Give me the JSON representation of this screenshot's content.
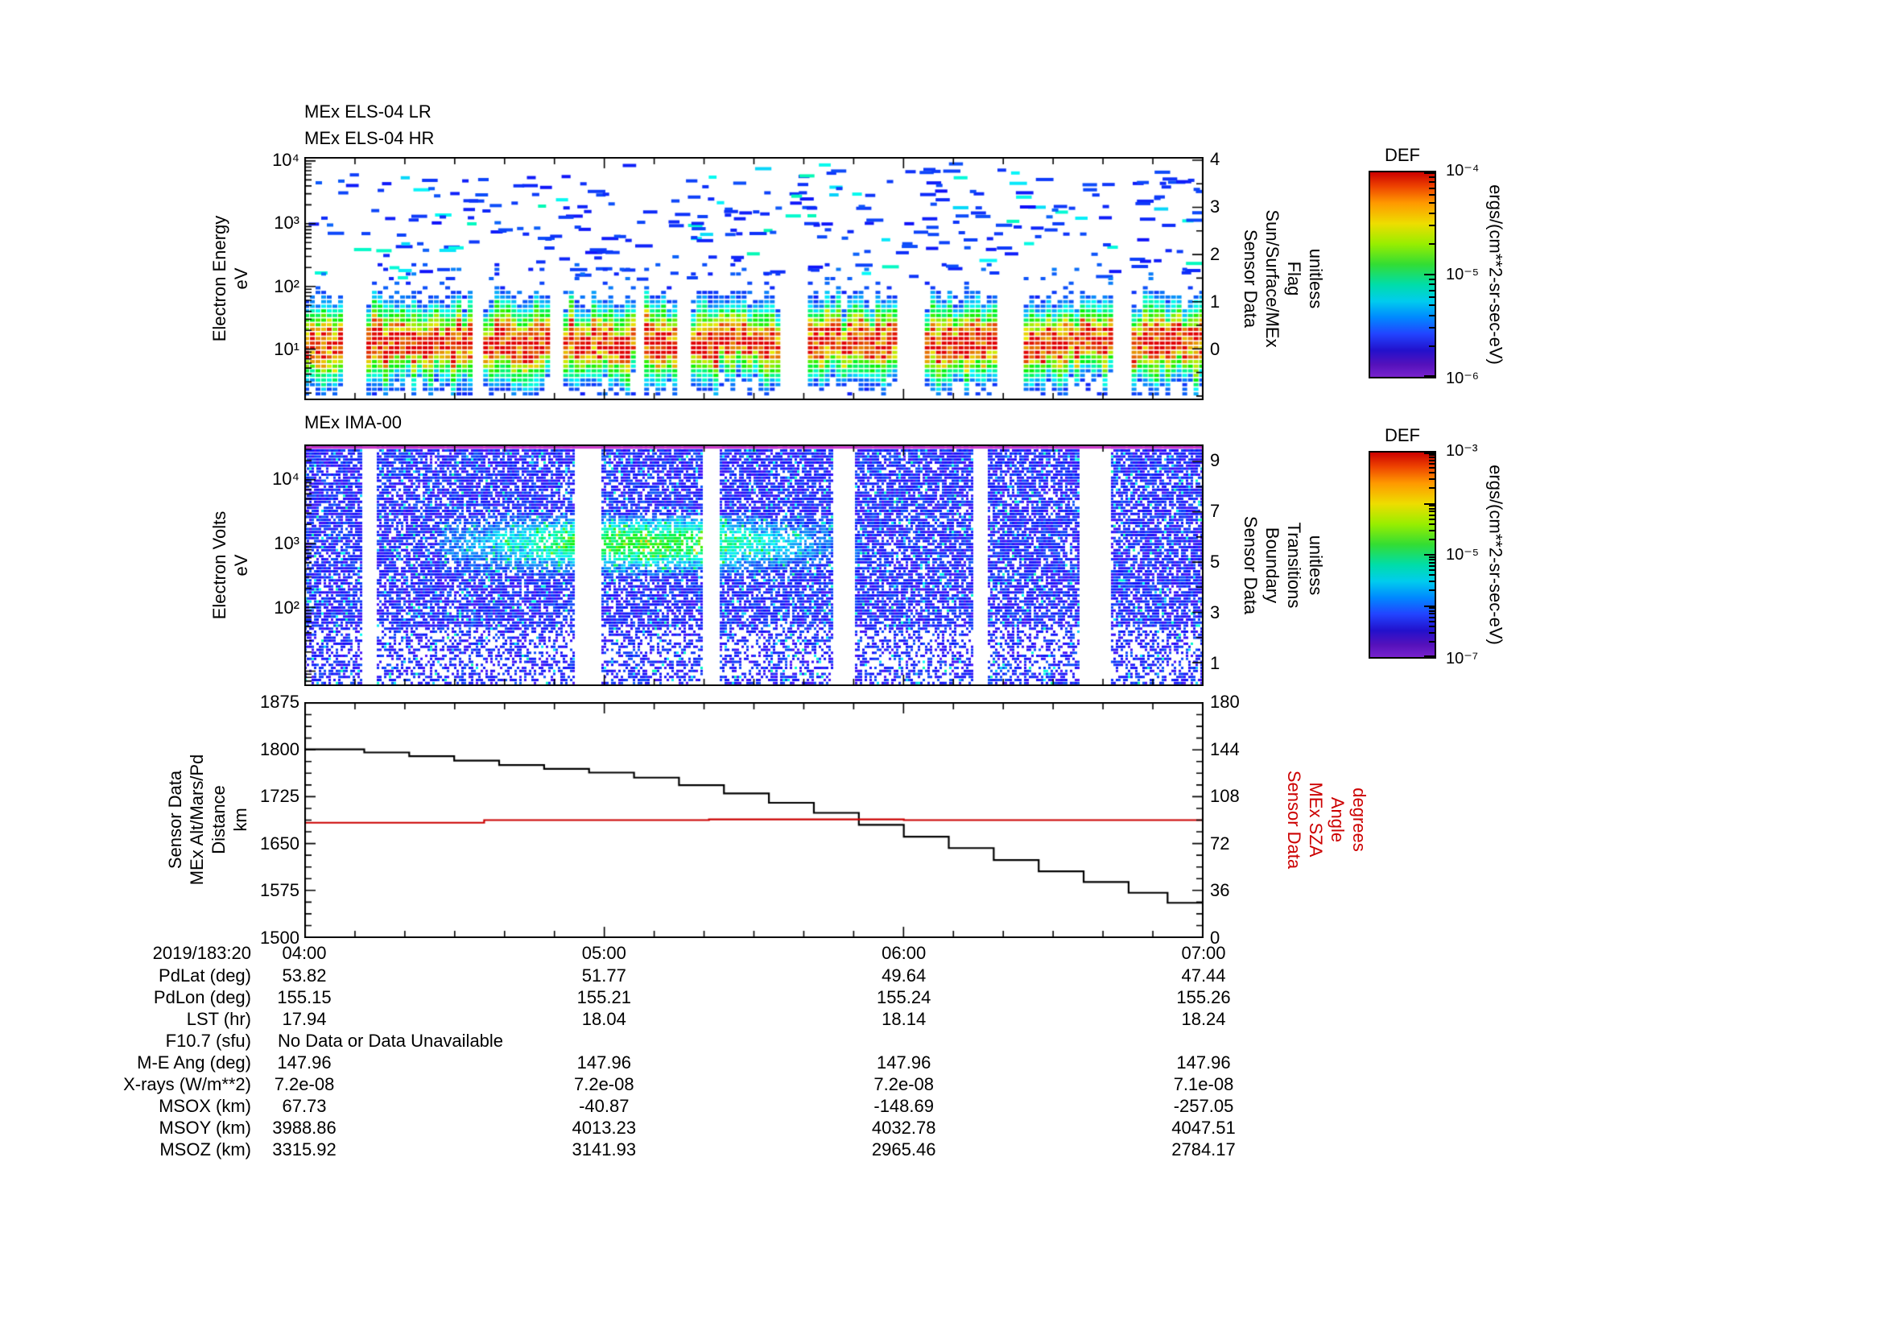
{
  "time_axis": {
    "date_label": "2019/183:20",
    "tick_labels": [
      "04:00",
      "05:00",
      "06:00",
      "07:00"
    ]
  },
  "panel_els": {
    "title_lr": "MEx ELS-04 LR",
    "title_hr": "MEx ELS-04 HR",
    "ylabel_lines": [
      "Electron Energy",
      "eV"
    ],
    "ytick_values": [
      4,
      3,
      2,
      1
    ],
    "ytick_labels": [
      "10⁴",
      "10³",
      "10²",
      "10¹"
    ],
    "right_label_lines": [
      "Sensor Data",
      "Sun/Surface/MEx",
      "Flag",
      "unitless"
    ],
    "right_tick_values": [
      4,
      3,
      2,
      1,
      0
    ],
    "right_tick_labels": [
      "4",
      "3",
      "2",
      "1",
      "0"
    ]
  },
  "panel_ima": {
    "title": "MEx IMA-00",
    "ylabel_lines": [
      "Electron Volts",
      "eV"
    ],
    "ytick_values": [
      4,
      3,
      2
    ],
    "ytick_labels": [
      "10⁴",
      "10³",
      "10²"
    ],
    "right_label_lines": [
      "Sensor Data",
      "Boundary",
      "Transitions",
      "unitless"
    ],
    "right_tick_values": [
      9,
      7,
      5,
      3,
      1
    ],
    "right_tick_labels": [
      "9",
      "7",
      "5",
      "3",
      "1"
    ]
  },
  "panel_alt": {
    "left_label_lines": [
      "Sensor Data",
      "MEx Alt/Mars/Pd",
      "Distance",
      "km"
    ],
    "left_tick_values": [
      1875,
      1800,
      1725,
      1650,
      1575,
      1500
    ],
    "left_tick_labels": [
      "1875",
      "1800",
      "1725",
      "1650",
      "1575",
      "1500"
    ],
    "right_label_lines": [
      "Sensor Data",
      "MEx SZA",
      "Angle",
      "degrees"
    ],
    "right_tick_values": [
      180,
      144,
      108,
      72,
      36,
      0
    ],
    "right_tick_labels": [
      "180",
      "144",
      "108",
      "72",
      "36",
      "0"
    ],
    "right_color": "#cc0000"
  },
  "colorbar_els": {
    "title": "DEF",
    "tick_labels": [
      "10⁻⁴",
      "10⁻⁵",
      "10⁻⁶"
    ],
    "unit": "ergs/(cm**2-sr-sec-eV)"
  },
  "colorbar_ima": {
    "title": "DEF",
    "tick_labels": [
      "10⁻³",
      "10⁻⁵",
      "10⁻⁷"
    ],
    "unit": "ergs/(cm**2-sr-sec-eV)"
  },
  "table": {
    "rows": [
      {
        "label": "PdLat (deg)",
        "values": [
          "53.82",
          "51.77",
          "49.64",
          "47.44"
        ]
      },
      {
        "label": "PdLon (deg)",
        "values": [
          "155.15",
          "155.21",
          "155.24",
          "155.26"
        ]
      },
      {
        "label": "LST (hr)",
        "values": [
          "17.94",
          "18.04",
          "18.14",
          "18.24"
        ]
      },
      {
        "label": "F10.7 (sfu)",
        "values": [],
        "note": "No Data or Data Unavailable"
      },
      {
        "label": "M-E Ang (deg)",
        "values": [
          "147.96",
          "147.96",
          "147.96",
          "147.96"
        ]
      },
      {
        "label": "X-rays (W/m**2)",
        "values": [
          "7.2e-08",
          "7.2e-08",
          "7.2e-08",
          "7.1e-08"
        ]
      },
      {
        "label": "MSOX (km)",
        "values": [
          "67.73",
          "-40.87",
          "-148.69",
          "-257.05"
        ]
      },
      {
        "label": "MSOY (km)",
        "values": [
          "3988.86",
          "4013.23",
          "4032.78",
          "4047.51"
        ]
      },
      {
        "label": "MSOZ (km)",
        "values": [
          "3315.92",
          "3141.93",
          "2965.46",
          "2784.17"
        ]
      }
    ]
  },
  "chart_data": [
    {
      "type": "heatmap",
      "title": "MEx ELS-04 LR/HR electron energy-time spectrogram",
      "x_range": [
        "04:00",
        "07:00"
      ],
      "ylabel": "Electron Energy (eV), log scale",
      "y_range_ev": [
        1.6,
        11000
      ],
      "color_unit": "ergs/(cm**2-sr-sec-eV)",
      "color_range": [
        1e-06,
        0.0001
      ],
      "intense_band_ev": [
        5,
        60
      ],
      "peak_flux": 0.0001,
      "sparse_flux": 1e-06,
      "burst_intervals_frac": [
        [
          0,
          0.042
        ],
        [
          0.069,
          0.185
        ],
        [
          0.199,
          0.27
        ],
        [
          0.288,
          0.369
        ],
        [
          0.378,
          0.412
        ],
        [
          0.43,
          0.53
        ],
        [
          0.56,
          0.66
        ],
        [
          0.69,
          0.77
        ],
        [
          0.8,
          0.9
        ],
        [
          0.92,
          1.0
        ]
      ]
    },
    {
      "type": "heatmap",
      "title": "MEx IMA-00 energy-time spectrogram",
      "x_range": [
        "04:00",
        "07:00"
      ],
      "ylabel": "Electron Volts (eV), log scale",
      "y_range_ev": [
        6,
        35000
      ],
      "color_unit": "ergs/(cm**2-sr-sec-eV)",
      "color_range": [
        1e-07,
        0.001
      ],
      "gap_intervals_frac": [
        [
          0.063,
          0.079
        ],
        [
          0.3,
          0.33
        ],
        [
          0.442,
          0.46
        ],
        [
          0.588,
          0.612
        ],
        [
          0.742,
          0.76
        ],
        [
          0.862,
          0.895
        ]
      ],
      "green_patch": {
        "t_frac": [
          0.15,
          0.62
        ],
        "ev_log": [
          2.5,
          3.45
        ]
      }
    },
    {
      "type": "line",
      "title": "MEx altitude and solar zenith angle",
      "x_unit": "hours on 2019/183",
      "x_range": [
        4,
        7
      ],
      "left_range": [
        1500,
        1875
      ],
      "right_range": [
        0,
        180
      ],
      "series": [
        {
          "name": "MEx Alt/Mars/Pd Distance",
          "unit": "km",
          "axis": "left",
          "color": "#000000",
          "step": true,
          "x": [
            4.0,
            4.2,
            4.35,
            4.5,
            4.65,
            4.8,
            4.95,
            5.1,
            5.25,
            5.4,
            5.55,
            5.7,
            5.85,
            6.0,
            6.15,
            6.3,
            6.45,
            6.6,
            6.75,
            6.88,
            7.0
          ],
          "y": [
            1800,
            1795,
            1789,
            1782,
            1775,
            1769,
            1763,
            1755,
            1743,
            1730,
            1715,
            1699,
            1680,
            1661,
            1643,
            1624,
            1606,
            1589,
            1572,
            1556,
            1543
          ]
        },
        {
          "name": "MEx SZA Angle",
          "unit": "degrees",
          "axis": "right",
          "color": "#cc0000",
          "step": true,
          "x": [
            4.0,
            4.55,
            4.6,
            5.3,
            5.35,
            5.95,
            6.0,
            7.0
          ],
          "y": [
            88,
            88,
            90,
            90,
            90.5,
            90.5,
            90,
            90
          ]
        }
      ]
    }
  ]
}
